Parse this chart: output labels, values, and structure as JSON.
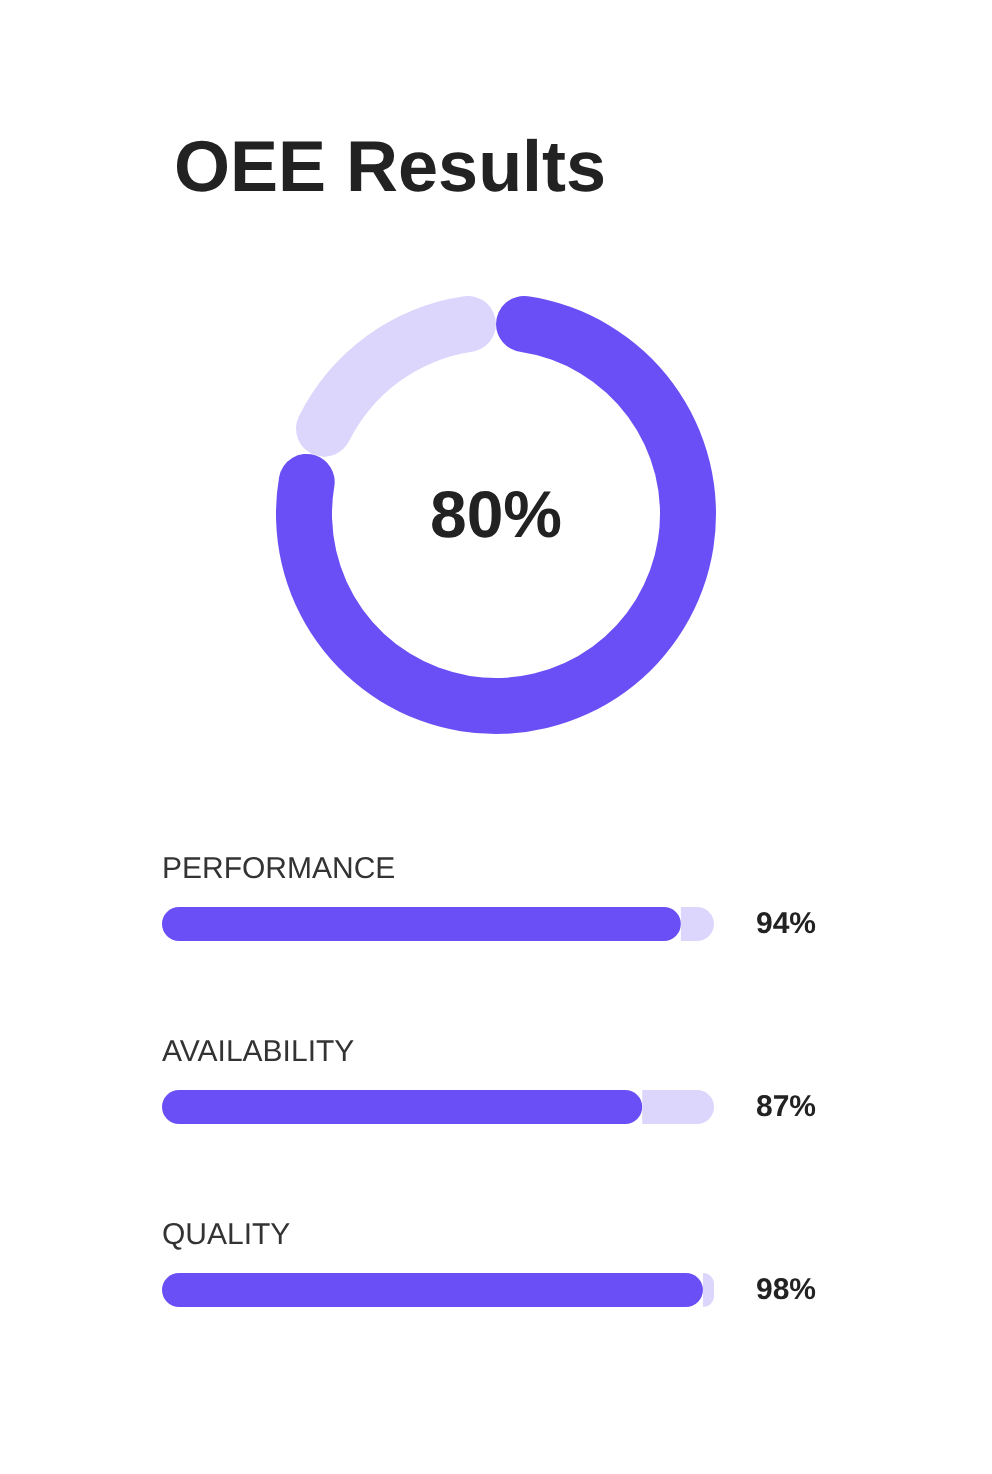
{
  "chart_data": [
    {
      "type": "donut",
      "title": "OEE Results",
      "categories": [
        null,
        null
      ],
      "values": [
        80,
        20
      ],
      "colors": [
        "#6a4ff6",
        "#dcd6fc"
      ],
      "value_labels": [
        "80%",
        null
      ]
    },
    {
      "type": "bar",
      "orientation": "horizontal",
      "stacked": true,
      "categories": [
        "PERFORMANCE",
        "AVAILABILITY",
        "QUALITY"
      ],
      "xlim": [
        0,
        1
      ],
      "tick_labels": "y",
      "series": [
        {
          "color": "#6a4ff6",
          "values": [
            0.94,
            0.87,
            0.98
          ],
          "value_labels": [
            "94%",
            "87%",
            "98%"
          ]
        },
        {
          "color": "#dcd6fc",
          "values": [
            0.06,
            0.13,
            0.02
          ]
        }
      ]
    }
  ]
}
